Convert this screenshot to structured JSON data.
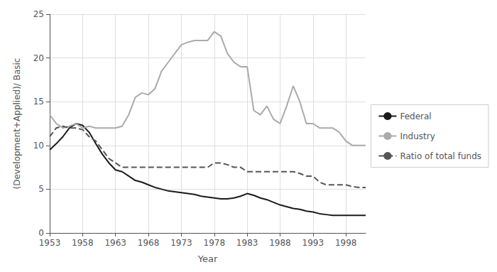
{
  "chart_data": {
    "type": "line",
    "xlabel": "Year",
    "ylabel": "(Development+Applied)/ Basic",
    "x": [
      1953,
      1954,
      1955,
      1956,
      1957,
      1958,
      1959,
      1960,
      1961,
      1962,
      1963,
      1964,
      1965,
      1966,
      1967,
      1968,
      1969,
      1970,
      1971,
      1972,
      1973,
      1974,
      1975,
      1976,
      1977,
      1978,
      1979,
      1980,
      1981,
      1982,
      1983,
      1984,
      1985,
      1986,
      1987,
      1988,
      1989,
      1990,
      1991,
      1992,
      1993,
      1994,
      1995,
      1996,
      1997,
      1998,
      1999,
      2000,
      2001
    ],
    "xlim": [
      1953,
      2001
    ],
    "xticks": [
      1953,
      1958,
      1963,
      1968,
      1973,
      1978,
      1983,
      1988,
      1993,
      1998
    ],
    "ylim": [
      0,
      25
    ],
    "yticks": [
      0,
      5,
      10,
      15,
      20,
      25
    ],
    "grid": true,
    "legend": "right",
    "series": [
      {
        "name": "Federal",
        "color": "#1a1a1a",
        "line_style": "solid",
        "values": [
          9.5,
          10.2,
          11.0,
          12.0,
          12.5,
          12.3,
          11.5,
          10.2,
          9.0,
          8.0,
          7.2,
          7.0,
          6.5,
          6.0,
          5.8,
          5.5,
          5.2,
          5.0,
          4.8,
          4.7,
          4.6,
          4.5,
          4.4,
          4.2,
          4.1,
          4.0,
          3.9,
          3.9,
          4.0,
          4.2,
          4.5,
          4.3,
          4.0,
          3.8,
          3.5,
          3.2,
          3.0,
          2.8,
          2.7,
          2.5,
          2.4,
          2.2,
          2.1,
          2.0,
          2.0,
          2.0,
          2.0,
          2.0,
          2.0
        ]
      },
      {
        "name": "Industry",
        "color": "#aaaaaa",
        "line_style": "solid",
        "values": [
          13.5,
          12.5,
          12.0,
          12.2,
          12.5,
          12.0,
          12.2,
          12.0,
          12.0,
          12.0,
          12.0,
          12.2,
          13.5,
          15.5,
          16.0,
          15.8,
          16.5,
          18.5,
          19.5,
          20.5,
          21.5,
          21.8,
          22.0,
          22.0,
          22.0,
          23.0,
          22.5,
          20.5,
          19.5,
          19.0,
          19.0,
          14.0,
          13.5,
          14.5,
          13.0,
          12.5,
          14.5,
          16.8,
          15.0,
          12.5,
          12.5,
          12.0,
          12.0,
          12.0,
          11.5,
          10.5,
          10.0,
          10.0,
          10.0
        ]
      },
      {
        "name": "Ratio of total funds",
        "color": "#555555",
        "line_style": "dashed",
        "values": [
          11.0,
          12.0,
          12.2,
          12.0,
          12.0,
          11.8,
          11.0,
          10.5,
          9.5,
          8.5,
          8.0,
          7.5,
          7.5,
          7.5,
          7.5,
          7.5,
          7.5,
          7.5,
          7.5,
          7.5,
          7.5,
          7.5,
          7.5,
          7.5,
          7.5,
          8.0,
          8.0,
          7.8,
          7.5,
          7.5,
          7.0,
          7.0,
          7.0,
          7.0,
          7.0,
          7.0,
          7.0,
          7.0,
          6.8,
          6.5,
          6.5,
          5.8,
          5.5,
          5.5,
          5.5,
          5.5,
          5.3,
          5.2,
          5.2
        ]
      }
    ]
  }
}
